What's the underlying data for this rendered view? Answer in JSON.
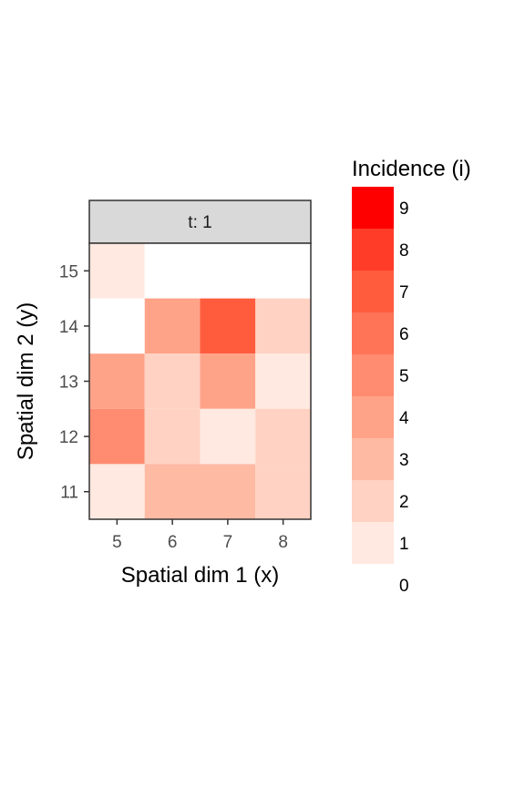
{
  "chart_data": {
    "type": "heatmap",
    "facet_label": "t: 1",
    "xlabel": "Spatial dim 1 (x)",
    "ylabel": "Spatial dim 2 (y)",
    "x": [
      5,
      6,
      7,
      8
    ],
    "y": [
      11,
      12,
      13,
      14,
      15
    ],
    "cells": [
      {
        "x": 5,
        "y": 15,
        "value": 1
      },
      {
        "x": 6,
        "y": 15,
        "value": 0
      },
      {
        "x": 7,
        "y": 15,
        "value": 0
      },
      {
        "x": 8,
        "y": 15,
        "value": 0
      },
      {
        "x": 5,
        "y": 14,
        "value": 0
      },
      {
        "x": 6,
        "y": 14,
        "value": 4
      },
      {
        "x": 7,
        "y": 14,
        "value": 7
      },
      {
        "x": 8,
        "y": 14,
        "value": 2
      },
      {
        "x": 5,
        "y": 13,
        "value": 4
      },
      {
        "x": 6,
        "y": 13,
        "value": 2
      },
      {
        "x": 7,
        "y": 13,
        "value": 4
      },
      {
        "x": 8,
        "y": 13,
        "value": 1
      },
      {
        "x": 5,
        "y": 12,
        "value": 5
      },
      {
        "x": 6,
        "y": 12,
        "value": 2
      },
      {
        "x": 7,
        "y": 12,
        "value": 1
      },
      {
        "x": 8,
        "y": 12,
        "value": 2
      },
      {
        "x": 5,
        "y": 11,
        "value": 1
      },
      {
        "x": 6,
        "y": 11,
        "value": 3
      },
      {
        "x": 7,
        "y": 11,
        "value": 3
      },
      {
        "x": 8,
        "y": 11,
        "value": 2
      }
    ],
    "legend": {
      "title": "Incidence (i)",
      "position": "right",
      "levels": [
        9,
        8,
        7,
        6,
        5,
        4,
        3,
        2,
        1,
        0
      ],
      "colors": {
        "9": "#ff0000",
        "8": "#ff3c28",
        "7": "#ff5c3e",
        "6": "#ff7357",
        "5": "#ff8c70",
        "4": "#ffa388",
        "3": "#ffbaa4",
        "2": "#ffd2c3",
        "1": "#ffe9e0",
        "0": "#ffffff"
      }
    },
    "panel_background": "#ffffff",
    "strip_background": "#d9d9d9",
    "grid": false
  }
}
